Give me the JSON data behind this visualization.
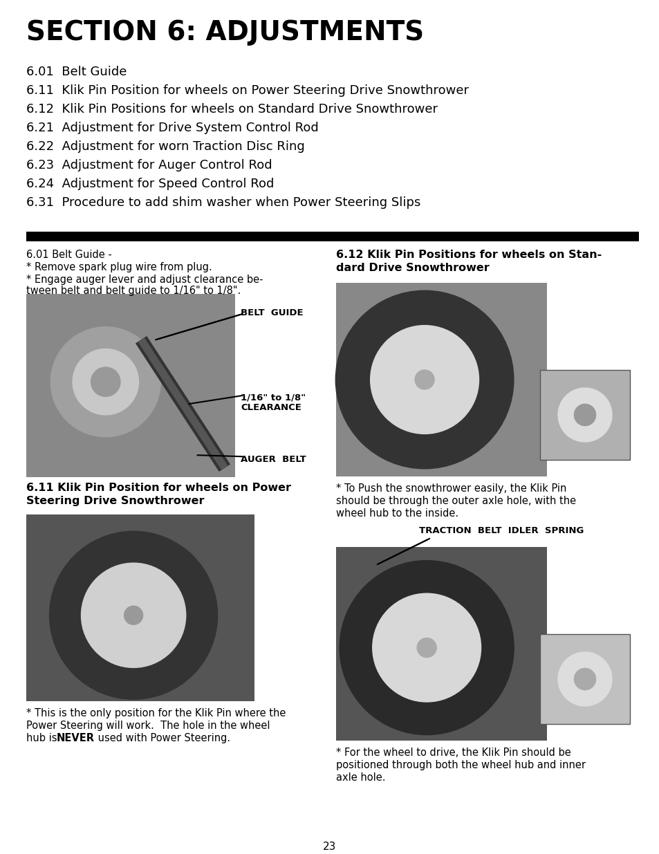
{
  "bg_color": "#ffffff",
  "title": "SECTION 6: ADJUSTMENTS",
  "title_fontsize": 28,
  "toc_items": [
    "6.01  Belt Guide",
    "6.11  Klik Pin Position for wheels on Power Steering Drive Snowthrower",
    "6.12  Klik Pin Positions for wheels on Standard Drive Snowthrower",
    "6.21  Adjustment for Drive System Control Rod",
    "6.22  Adjustment for worn Traction Disc Ring",
    "6.23  Adjustment for Auger Control Rod",
    "6.24  Adjustment for Speed Control Rod",
    "6.31  Procedure to add shim washer when Power Steering Slips"
  ],
  "toc_fontsize": 13,
  "toc_indent": 38,
  "section601_title": "6.01 Belt Guide -",
  "section601_line1": "* Remove spark plug wire from plug.",
  "section601_line2": "* Engage auger lever and adjust clearance be-",
  "section601_line3": "tween belt and belt guide to 1/16\" to 1/8\".",
  "belt_guide_label": "BELT  GUIDE",
  "clearance_label_1": "1/16\" to 1/8\"",
  "clearance_label_2": "CLEARANCE",
  "auger_belt_label": "AUGER  BELT",
  "section611_title_1": "6.11 Klik Pin Position for wheels on Power",
  "section611_title_2": "Steering Drive Snowthrower",
  "section611_cap1": "* This is the only position for the Klik Pin where the",
  "section611_cap2": "Power Steering will work.  The hole in the wheel",
  "section611_cap3_pre": "hub is ",
  "section611_cap3_bold": "NEVER",
  "section611_cap3_post": " used with Power Steering.",
  "section612_title_1": "6.12 Klik Pin Positions for wheels on Stan-",
  "section612_title_2": "dard Drive Snowthrower",
  "section612_cap1": "* To Push the snowthrower easily, the Klik Pin",
  "section612_cap2": "should be through the outer axle hole, with the",
  "section612_cap3": "wheel hub to the inside.",
  "traction_label": "TRACTION  BELT  IDLER  SPRING",
  "bottom_right_cap1": "* For the wheel to drive, the Klik Pin should be",
  "bottom_right_cap2": "positioned through both the wheel hub and inner",
  "bottom_right_cap3": "axle hole.",
  "page_number": "23",
  "photo_gray": "#888888",
  "photo_dark": "#555555",
  "photo_light": "#cccccc",
  "photo_mid": "#aaaaaa"
}
